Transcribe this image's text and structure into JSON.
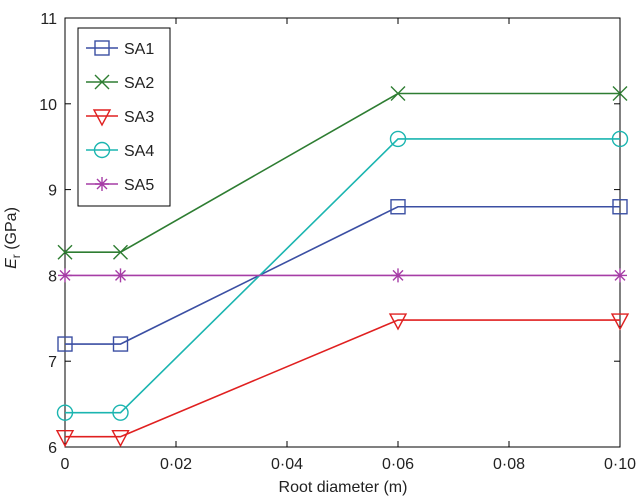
{
  "chart_data": {
    "type": "line",
    "xlabel": "Root diameter (m)",
    "ylabel_main": "E",
    "ylabel_sub": "r",
    "ylabel_unit": " (GPa)",
    "x": [
      0,
      0.01,
      0.06,
      0.1
    ],
    "xlim": [
      0,
      0.1
    ],
    "ylim": [
      6,
      11
    ],
    "xticks": [
      0,
      0.02,
      0.04,
      0.06,
      0.08,
      0.1
    ],
    "xtick_labels": [
      "0",
      "0·02",
      "0·04",
      "0·06",
      "0·08",
      "0·10"
    ],
    "yticks": [
      6,
      7,
      8,
      9,
      10,
      11
    ],
    "ytick_labels": [
      "6",
      "7",
      "8",
      "9",
      "10",
      "11"
    ],
    "legend_position": "top-left",
    "grid": false,
    "series": [
      {
        "name": "SA1",
        "values": [
          7.2,
          7.2,
          8.8,
          8.8
        ],
        "color": "#3b4fa3",
        "marker": "square"
      },
      {
        "name": "SA2",
        "values": [
          8.27,
          8.27,
          10.12,
          10.12
        ],
        "color": "#2e7d32",
        "marker": "x"
      },
      {
        "name": "SA3",
        "values": [
          6.12,
          6.12,
          7.48,
          7.48
        ],
        "color": "#e02020",
        "marker": "triangle-down"
      },
      {
        "name": "SA4",
        "values": [
          6.4,
          6.4,
          9.59,
          9.59
        ],
        "color": "#1bb5b0",
        "marker": "circle"
      },
      {
        "name": "SA5",
        "values": [
          8.0,
          8.0,
          8.0,
          8.0
        ],
        "color": "#a63da6",
        "marker": "star"
      }
    ]
  }
}
